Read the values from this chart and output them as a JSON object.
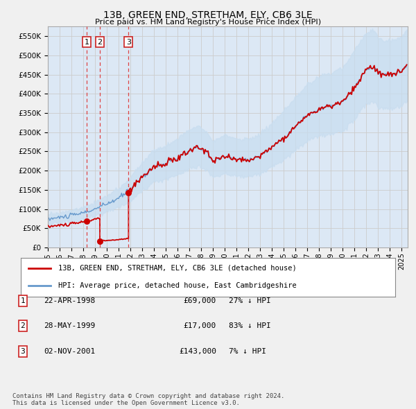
{
  "title": "13B, GREEN END, STRETHAM, ELY, CB6 3LE",
  "subtitle": "Price paid vs. HM Land Registry's House Price Index (HPI)",
  "xlim_start": 1995.0,
  "xlim_end": 2025.5,
  "ylim": [
    0,
    575000
  ],
  "yticks": [
    0,
    50000,
    100000,
    150000,
    200000,
    250000,
    300000,
    350000,
    400000,
    450000,
    500000,
    550000
  ],
  "ytick_labels": [
    "£0",
    "£50K",
    "£100K",
    "£150K",
    "£200K",
    "£250K",
    "£300K",
    "£350K",
    "£400K",
    "£450K",
    "£500K",
    "£550K"
  ],
  "transactions": [
    {
      "num": 1,
      "date": "22-APR-1998",
      "price": 69000,
      "year": 1998.31,
      "pct": "27%",
      "dir": "↓"
    },
    {
      "num": 2,
      "date": "28-MAY-1999",
      "price": 17000,
      "year": 1999.41,
      "pct": "83%",
      "dir": "↓"
    },
    {
      "num": 3,
      "date": "02-NOV-2001",
      "price": 143000,
      "year": 2001.84,
      "pct": "7%",
      "dir": "↓"
    }
  ],
  "red_line_color": "#cc0000",
  "blue_line_color": "#6699cc",
  "blue_fill_color": "#c8ddf0",
  "grid_color": "#cccccc",
  "vline_color": "#dd4444",
  "box_color": "#cc2222",
  "legend_label_red": "13B, GREEN END, STRETHAM, ELY, CB6 3LE (detached house)",
  "legend_label_blue": "HPI: Average price, detached house, East Cambridgeshire",
  "footer1": "Contains HM Land Registry data © Crown copyright and database right 2024.",
  "footer2": "This data is licensed under the Open Government Licence v3.0.",
  "bg_color": "#f0f0f0",
  "plot_bg_color": "#dce8f5"
}
